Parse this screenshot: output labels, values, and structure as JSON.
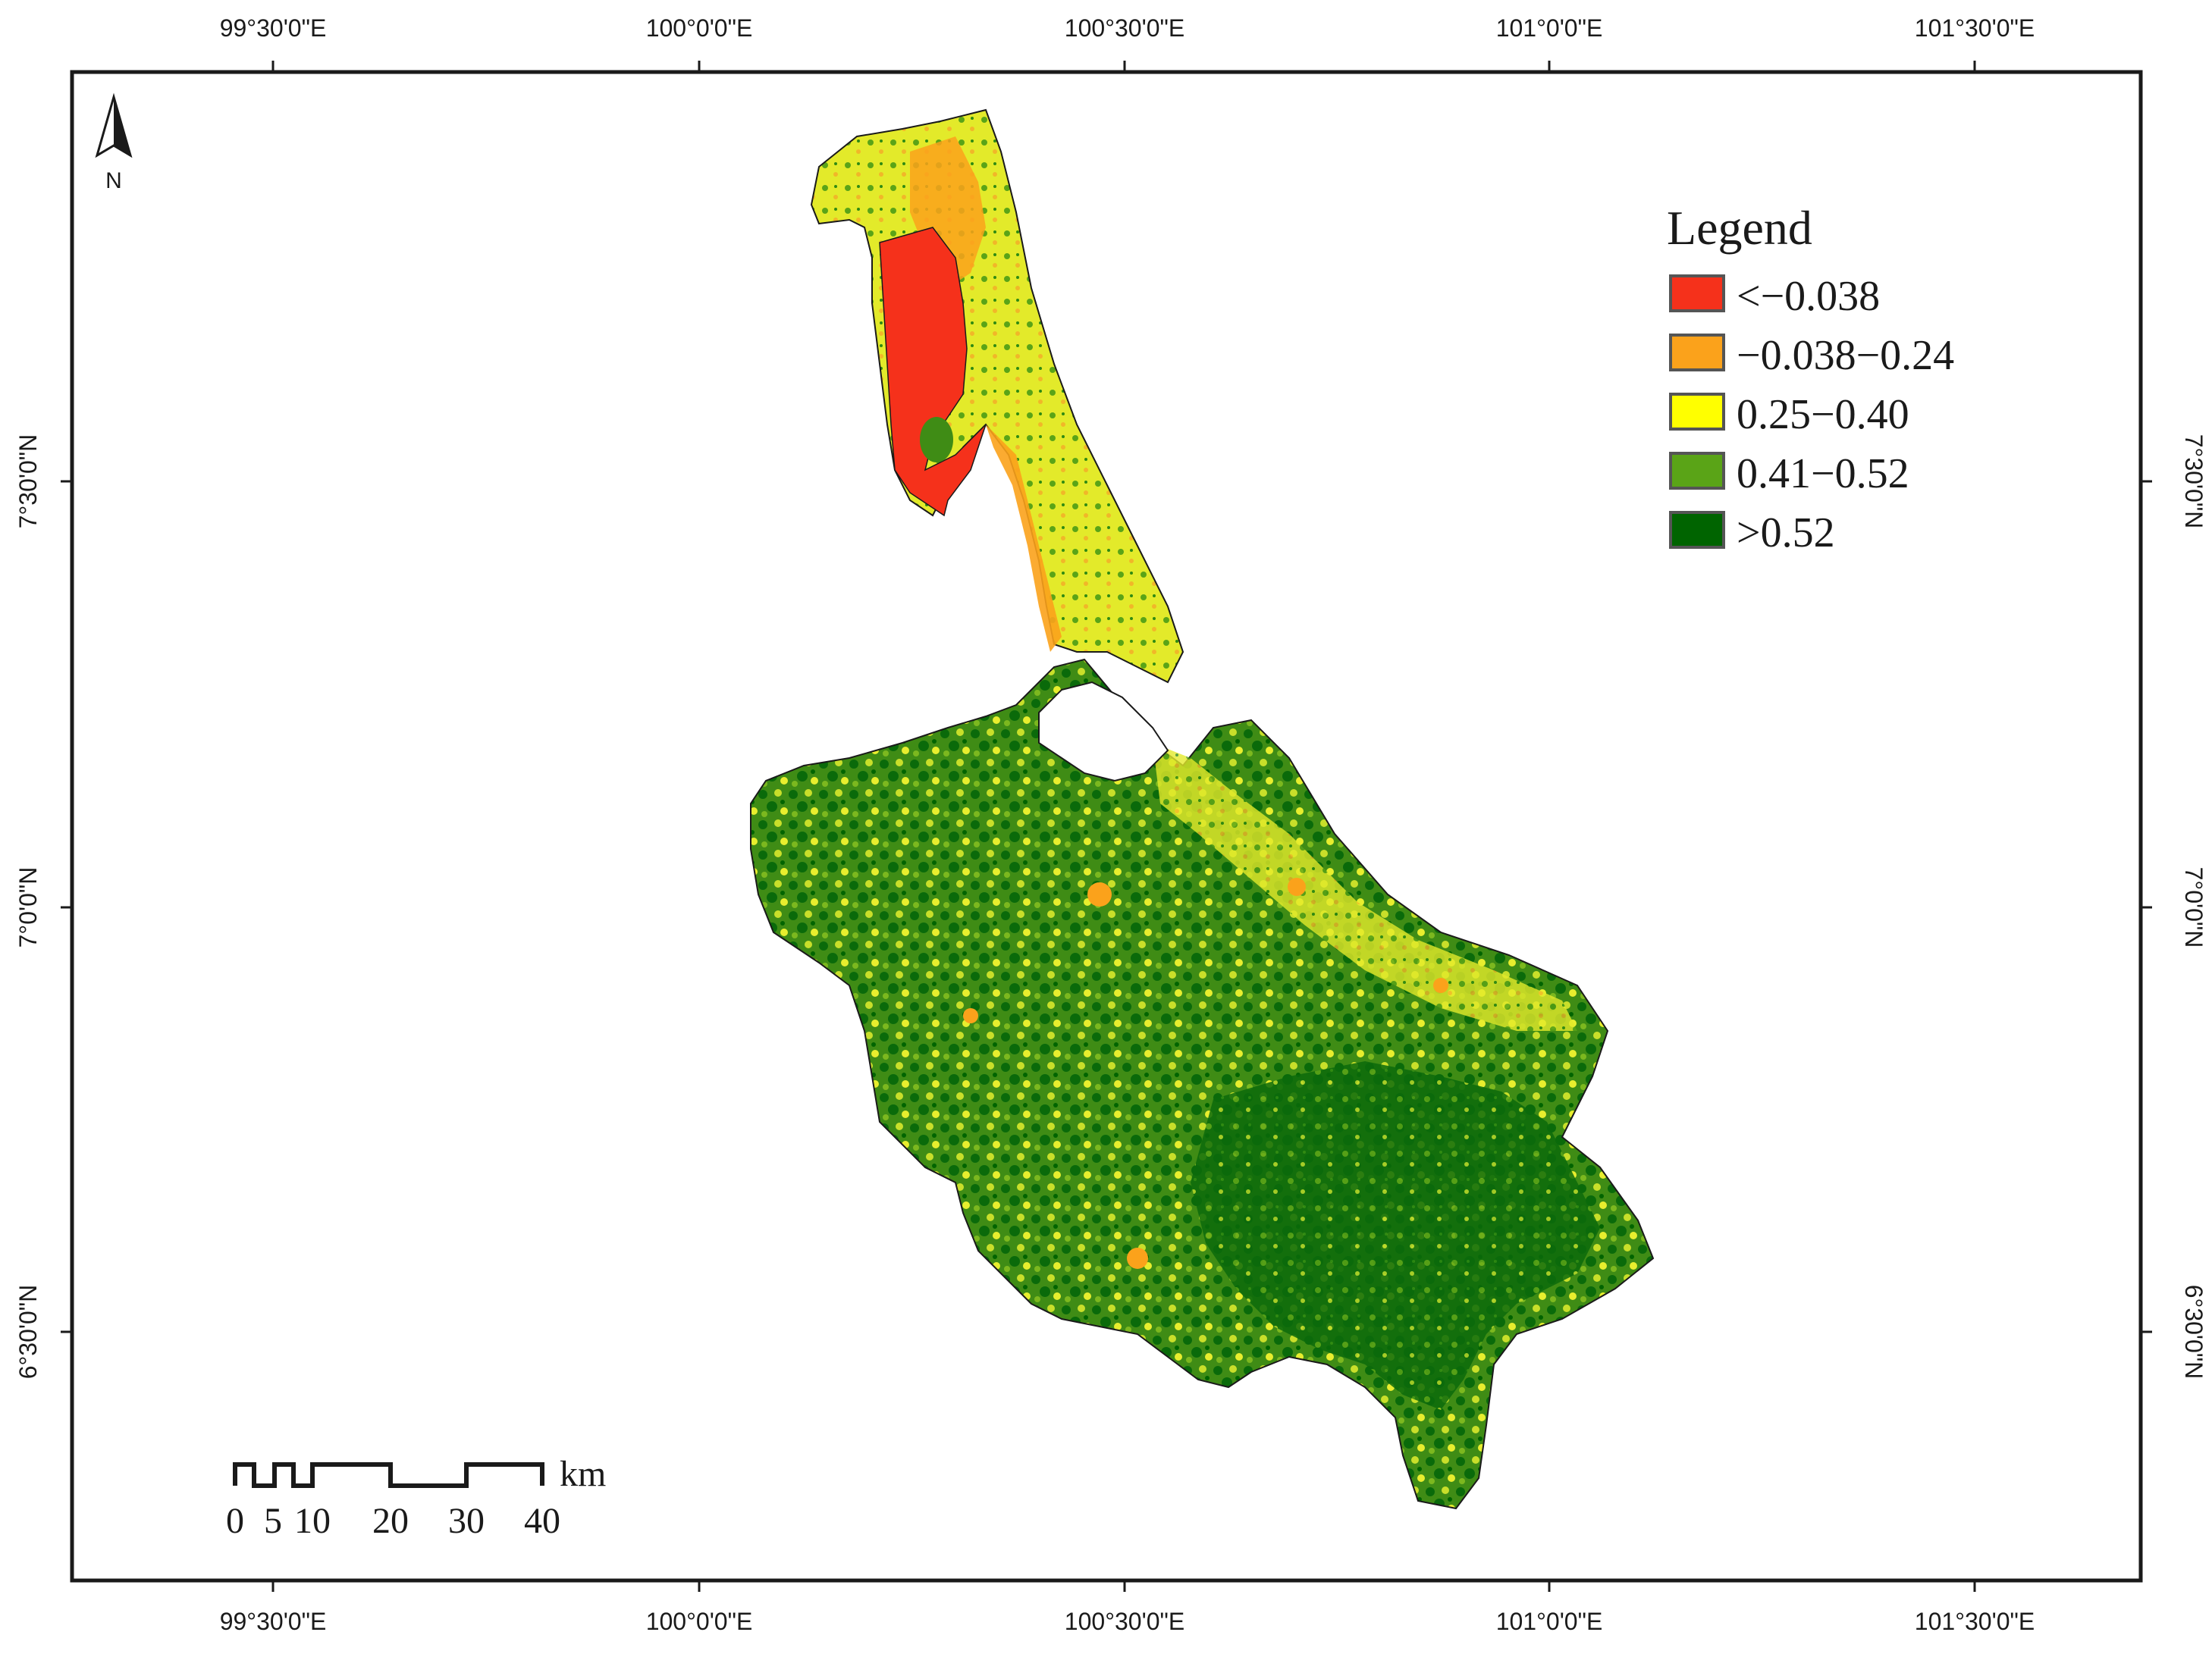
{
  "map": {
    "top_axis_labels": [
      "99°30'0\"E",
      "100°0'0\"E",
      "100°30'0\"E",
      "101°0'0\"E",
      "101°30'0\"E"
    ],
    "bottom_axis_labels": [
      "99°30'0\"E",
      "100°0'0\"E",
      "100°30'0\"E",
      "101°0'0\"E",
      "101°30'0\"E"
    ],
    "left_axis_labels": [
      "7°30'0\"N",
      "7°0'0\"N",
      "6°30'0\"N"
    ],
    "right_axis_labels": [
      "7°30'0\"N",
      "7°0'0\"N",
      "6°30'0\"N"
    ],
    "north_arrow_label": "N",
    "legend": {
      "title": "Legend",
      "items": [
        {
          "label": "<−0.038",
          "color": "#f5311b"
        },
        {
          "label": "−0.038−0.24",
          "color": "#fba21b"
        },
        {
          "label": "0.25−0.40",
          "color": "#ffff00"
        },
        {
          "label": "0.41−0.52",
          "color": "#5aa417"
        },
        {
          "label": ">0.52",
          "color": "#006400"
        }
      ]
    },
    "scale_bar": {
      "unit": "km",
      "ticks": [
        "0",
        "5",
        "10",
        "20",
        "30",
        "40"
      ]
    }
  }
}
